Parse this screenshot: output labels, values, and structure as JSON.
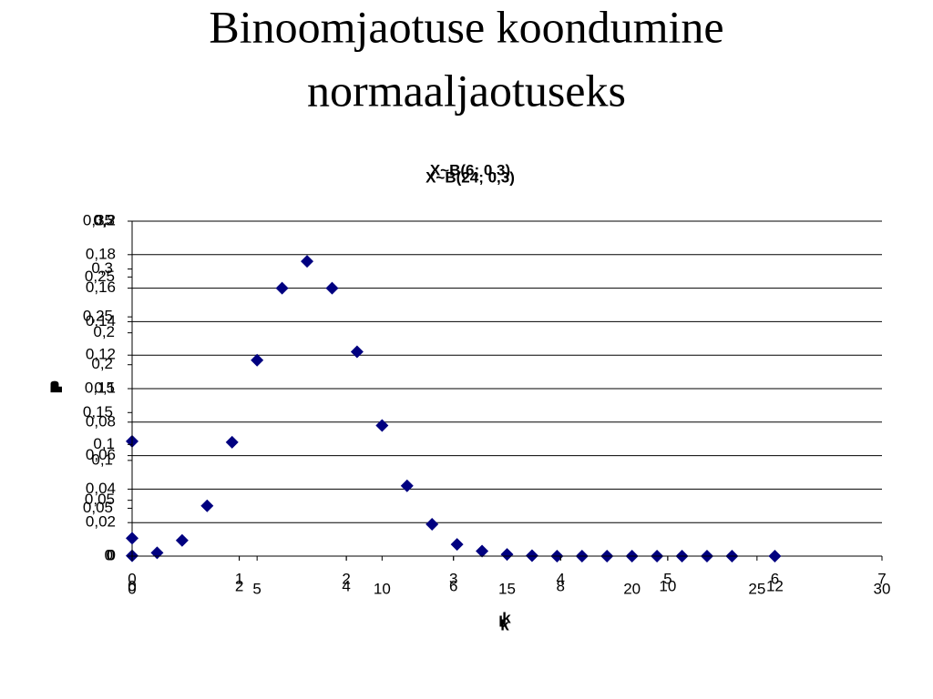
{
  "title": "Binoomjaotuse koondumine normaaljaotuseks",
  "chart_data": [
    {
      "type": "scatter",
      "title": "X~B(24; 0,3)",
      "x_label": "k",
      "y_label": "p",
      "grid": true,
      "series": [
        {
          "color": "#000080",
          "x": [
            0,
            1,
            2,
            3,
            4,
            5,
            6,
            7,
            8,
            9,
            10,
            11,
            12,
            13,
            14,
            15,
            16,
            17,
            18,
            19,
            20,
            21,
            22,
            23,
            24
          ],
          "values": [
            0.0002,
            0.002,
            0.0094,
            0.03,
            0.068,
            0.117,
            0.16,
            0.176,
            0.16,
            0.122,
            0.078,
            0.042,
            0.019,
            0.007,
            0.003,
            0.001,
            0.0003,
            0,
            0,
            0,
            0,
            0,
            0,
            0,
            0
          ]
        }
      ],
      "xlim": [
        0,
        30
      ],
      "xticks": [
        0,
        5,
        10,
        15,
        20,
        25,
        30
      ],
      "ylim": [
        0,
        0.2
      ],
      "yticks": [
        0,
        {
          "value": 0.02,
          "label": "0,02"
        },
        {
          "value": 0.04,
          "label": "0,04"
        },
        {
          "value": 0.06,
          "label": "0,06"
        },
        {
          "value": 0.08,
          "label": "0,08"
        },
        {
          "value": 0.1,
          "label": "0,1"
        },
        {
          "value": 0.12,
          "label": "0,12"
        },
        {
          "value": 0.14,
          "label": "0,14"
        },
        {
          "value": 0.16,
          "label": "0,16"
        },
        {
          "value": 0.18,
          "label": "0,18"
        },
        {
          "value": 0.2,
          "label": "0,2"
        }
      ]
    },
    {
      "type": "scatter",
      "title": "X~B(6; 0,3)",
      "x_label": "k",
      "y_label": "p",
      "grid": false,
      "series": [
        {
          "color": "#000080",
          "x": [
            0
          ],
          "values": [
            0.12
          ]
        }
      ],
      "xlim": [
        0,
        7
      ],
      "xticks": [
        0,
        1,
        2,
        3,
        4,
        5,
        6,
        7
      ],
      "ylim": [
        0,
        0.35
      ],
      "yticks": [
        0,
        {
          "value": 0.05,
          "label": "0,05"
        },
        {
          "value": 0.1,
          "label": "0,1"
        },
        {
          "value": 0.15,
          "label": "0,15"
        },
        {
          "value": 0.2,
          "label": "0,2"
        },
        {
          "value": 0.25,
          "label": "0,25"
        },
        {
          "value": 0.3,
          "label": "0,3"
        },
        {
          "value": 0.35,
          "label": "0,35"
        }
      ]
    },
    {
      "type": "scatter",
      "x_label": "k",
      "y_label": "p",
      "grid": false,
      "series": [
        {
          "color": "#000080",
          "x": [
            0,
            12
          ],
          "values": [
            0.016,
            0
          ]
        }
      ],
      "xlim": [
        0,
        14
      ],
      "xticks": [
        0,
        2,
        4,
        6,
        8,
        10,
        12
      ],
      "ylim": [
        0,
        0.3
      ],
      "yticks": [
        0,
        {
          "value": 0.05,
          "label": "0,05"
        },
        {
          "value": 0.1,
          "label": "0,1"
        },
        {
          "value": 0.15,
          "label": "0,15"
        },
        {
          "value": 0.2,
          "label": "0,2"
        },
        {
          "value": 0.25,
          "label": "0,25"
        },
        {
          "value": 0.3,
          "label": "0,3"
        }
      ]
    }
  ]
}
